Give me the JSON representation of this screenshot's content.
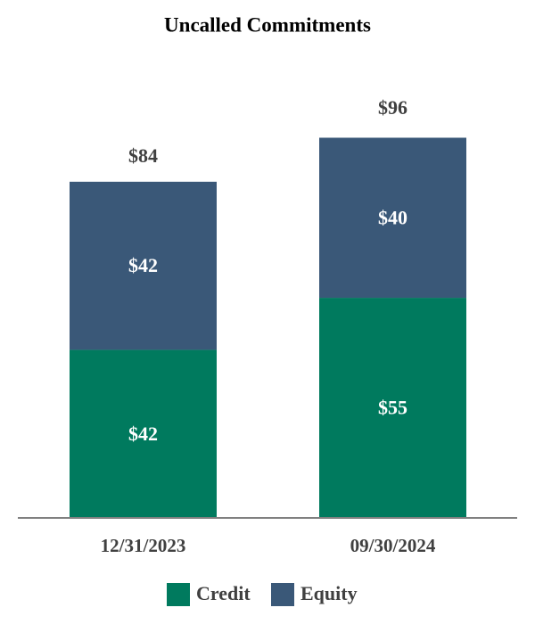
{
  "chart_data": {
    "type": "stacked_bar",
    "title": "Uncalled Commitments",
    "categories": [
      "12/31/2023",
      "09/30/2024"
    ],
    "series": [
      {
        "name": "Credit",
        "color": "#007a5e",
        "values": [
          42,
          55
        ],
        "value_labels": [
          "$42",
          "$55"
        ]
      },
      {
        "name": "Equity",
        "color": "#3a5878",
        "values": [
          42,
          40
        ],
        "value_labels": [
          "$42",
          "$40"
        ]
      }
    ],
    "totals": [
      84,
      96
    ],
    "total_labels": [
      "$84",
      "$96"
    ],
    "legend": "bottom"
  }
}
